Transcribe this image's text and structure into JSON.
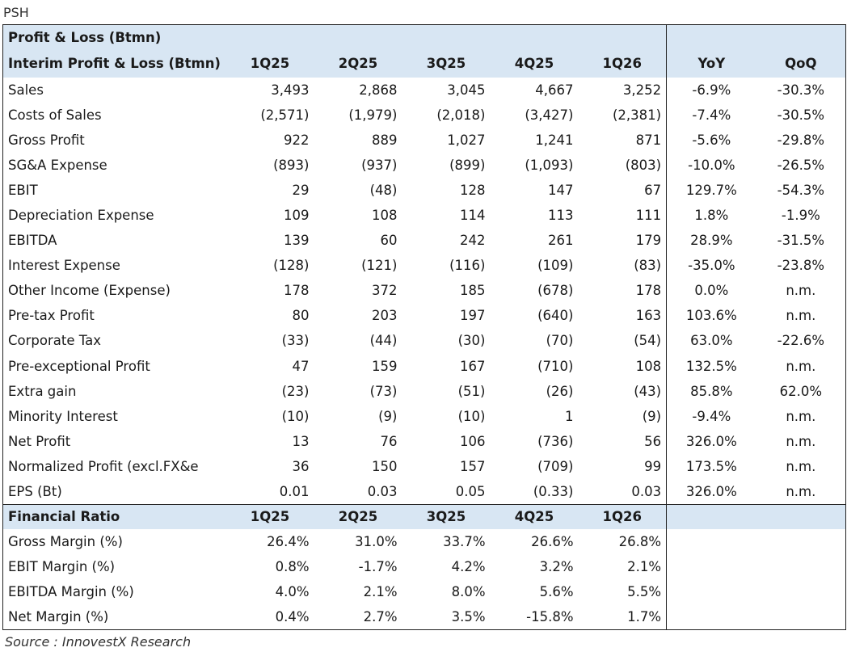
{
  "ticker": "PSH",
  "header": {
    "title": "Profit & Loss (Btmn)",
    "subtitle": "Interim Profit & Loss (Btmn)",
    "periods": [
      "1Q25",
      "2Q25",
      "3Q25",
      "4Q25",
      "1Q26"
    ],
    "yoy": "YoY",
    "qoq": "QoQ"
  },
  "pl_rows": [
    {
      "label": "Sales",
      "values": [
        "3,493",
        "2,868",
        "3,045",
        "4,667",
        "3,252"
      ],
      "yoy": "-6.9%",
      "qoq": "-30.3%"
    },
    {
      "label": "Costs of Sales",
      "values": [
        "(2,571)",
        "(1,979)",
        "(2,018)",
        "(3,427)",
        "(2,381)"
      ],
      "yoy": "-7.4%",
      "qoq": "-30.5%"
    },
    {
      "label": "Gross Profit",
      "values": [
        "922",
        "889",
        "1,027",
        "1,241",
        "871"
      ],
      "yoy": "-5.6%",
      "qoq": "-29.8%"
    },
    {
      "label": "SG&A Expense",
      "values": [
        "(893)",
        "(937)",
        "(899)",
        "(1,093)",
        "(803)"
      ],
      "yoy": "-10.0%",
      "qoq": "-26.5%"
    },
    {
      "label": "EBIT",
      "values": [
        "29",
        "(48)",
        "128",
        "147",
        "67"
      ],
      "yoy": "129.7%",
      "qoq": "-54.3%"
    },
    {
      "label": "Depreciation Expense",
      "values": [
        "109",
        "108",
        "114",
        "113",
        "111"
      ],
      "yoy": "1.8%",
      "qoq": "-1.9%"
    },
    {
      "label": "EBITDA",
      "values": [
        "139",
        "60",
        "242",
        "261",
        "179"
      ],
      "yoy": "28.9%",
      "qoq": "-31.5%"
    },
    {
      "label": "Interest Expense",
      "values": [
        "(128)",
        "(121)",
        "(116)",
        "(109)",
        "(83)"
      ],
      "yoy": "-35.0%",
      "qoq": "-23.8%"
    },
    {
      "label": "Other Income (Expense)",
      "values": [
        "178",
        "372",
        "185",
        "(678)",
        "178"
      ],
      "yoy": "0.0%",
      "qoq": "n.m."
    },
    {
      "label": "Pre-tax Profit",
      "values": [
        "80",
        "203",
        "197",
        "(640)",
        "163"
      ],
      "yoy": "103.6%",
      "qoq": "n.m."
    },
    {
      "label": "Corporate Tax",
      "values": [
        "(33)",
        "(44)",
        "(30)",
        "(70)",
        "(54)"
      ],
      "yoy": "63.0%",
      "qoq": "-22.6%"
    },
    {
      "label": "Pre-exceptional Profit",
      "values": [
        "47",
        "159",
        "167",
        "(710)",
        "108"
      ],
      "yoy": "132.5%",
      "qoq": "n.m."
    },
    {
      "label": "Extra gain",
      "values": [
        "(23)",
        "(73)",
        "(51)",
        "(26)",
        "(43)"
      ],
      "yoy": "85.8%",
      "qoq": "62.0%"
    },
    {
      "label": "Minority Interest",
      "values": [
        "(10)",
        "(9)",
        "(10)",
        "1",
        "(9)"
      ],
      "yoy": "-9.4%",
      "qoq": "n.m."
    },
    {
      "label": "Net Profit",
      "values": [
        "13",
        "76",
        "106",
        "(736)",
        "56"
      ],
      "yoy": "326.0%",
      "qoq": "n.m."
    },
    {
      "label": "Normalized Profit (excl.FX&e",
      "values": [
        "36",
        "150",
        "157",
        "(709)",
        "99"
      ],
      "yoy": "173.5%",
      "qoq": "n.m."
    },
    {
      "label": "EPS (Bt)",
      "values": [
        "0.01",
        "0.03",
        "0.05",
        "(0.33)",
        "0.03"
      ],
      "yoy": "326.0%",
      "qoq": "n.m."
    }
  ],
  "ratio_header": {
    "title": "Financial Ratio",
    "periods": [
      "1Q25",
      "2Q25",
      "3Q25",
      "4Q25",
      "1Q26"
    ]
  },
  "ratio_rows": [
    {
      "label": "Gross Margin (%)",
      "values": [
        "26.4%",
        "31.0%",
        "33.7%",
        "26.6%",
        "26.8%"
      ]
    },
    {
      "label": "EBIT Margin (%)",
      "values": [
        "0.8%",
        "-1.7%",
        "4.2%",
        "3.2%",
        "2.1%"
      ]
    },
    {
      "label": "EBITDA Margin (%)",
      "values": [
        "4.0%",
        "2.1%",
        "8.0%",
        "5.6%",
        "5.5%"
      ]
    },
    {
      "label": "Net Margin (%)",
      "values": [
        "0.4%",
        "2.7%",
        "3.5%",
        "-15.8%",
        "1.7%"
      ]
    }
  ],
  "source": "Source : InnovestX Research",
  "colors": {
    "header_bg": "#d8e6f3",
    "border": "#222222"
  }
}
